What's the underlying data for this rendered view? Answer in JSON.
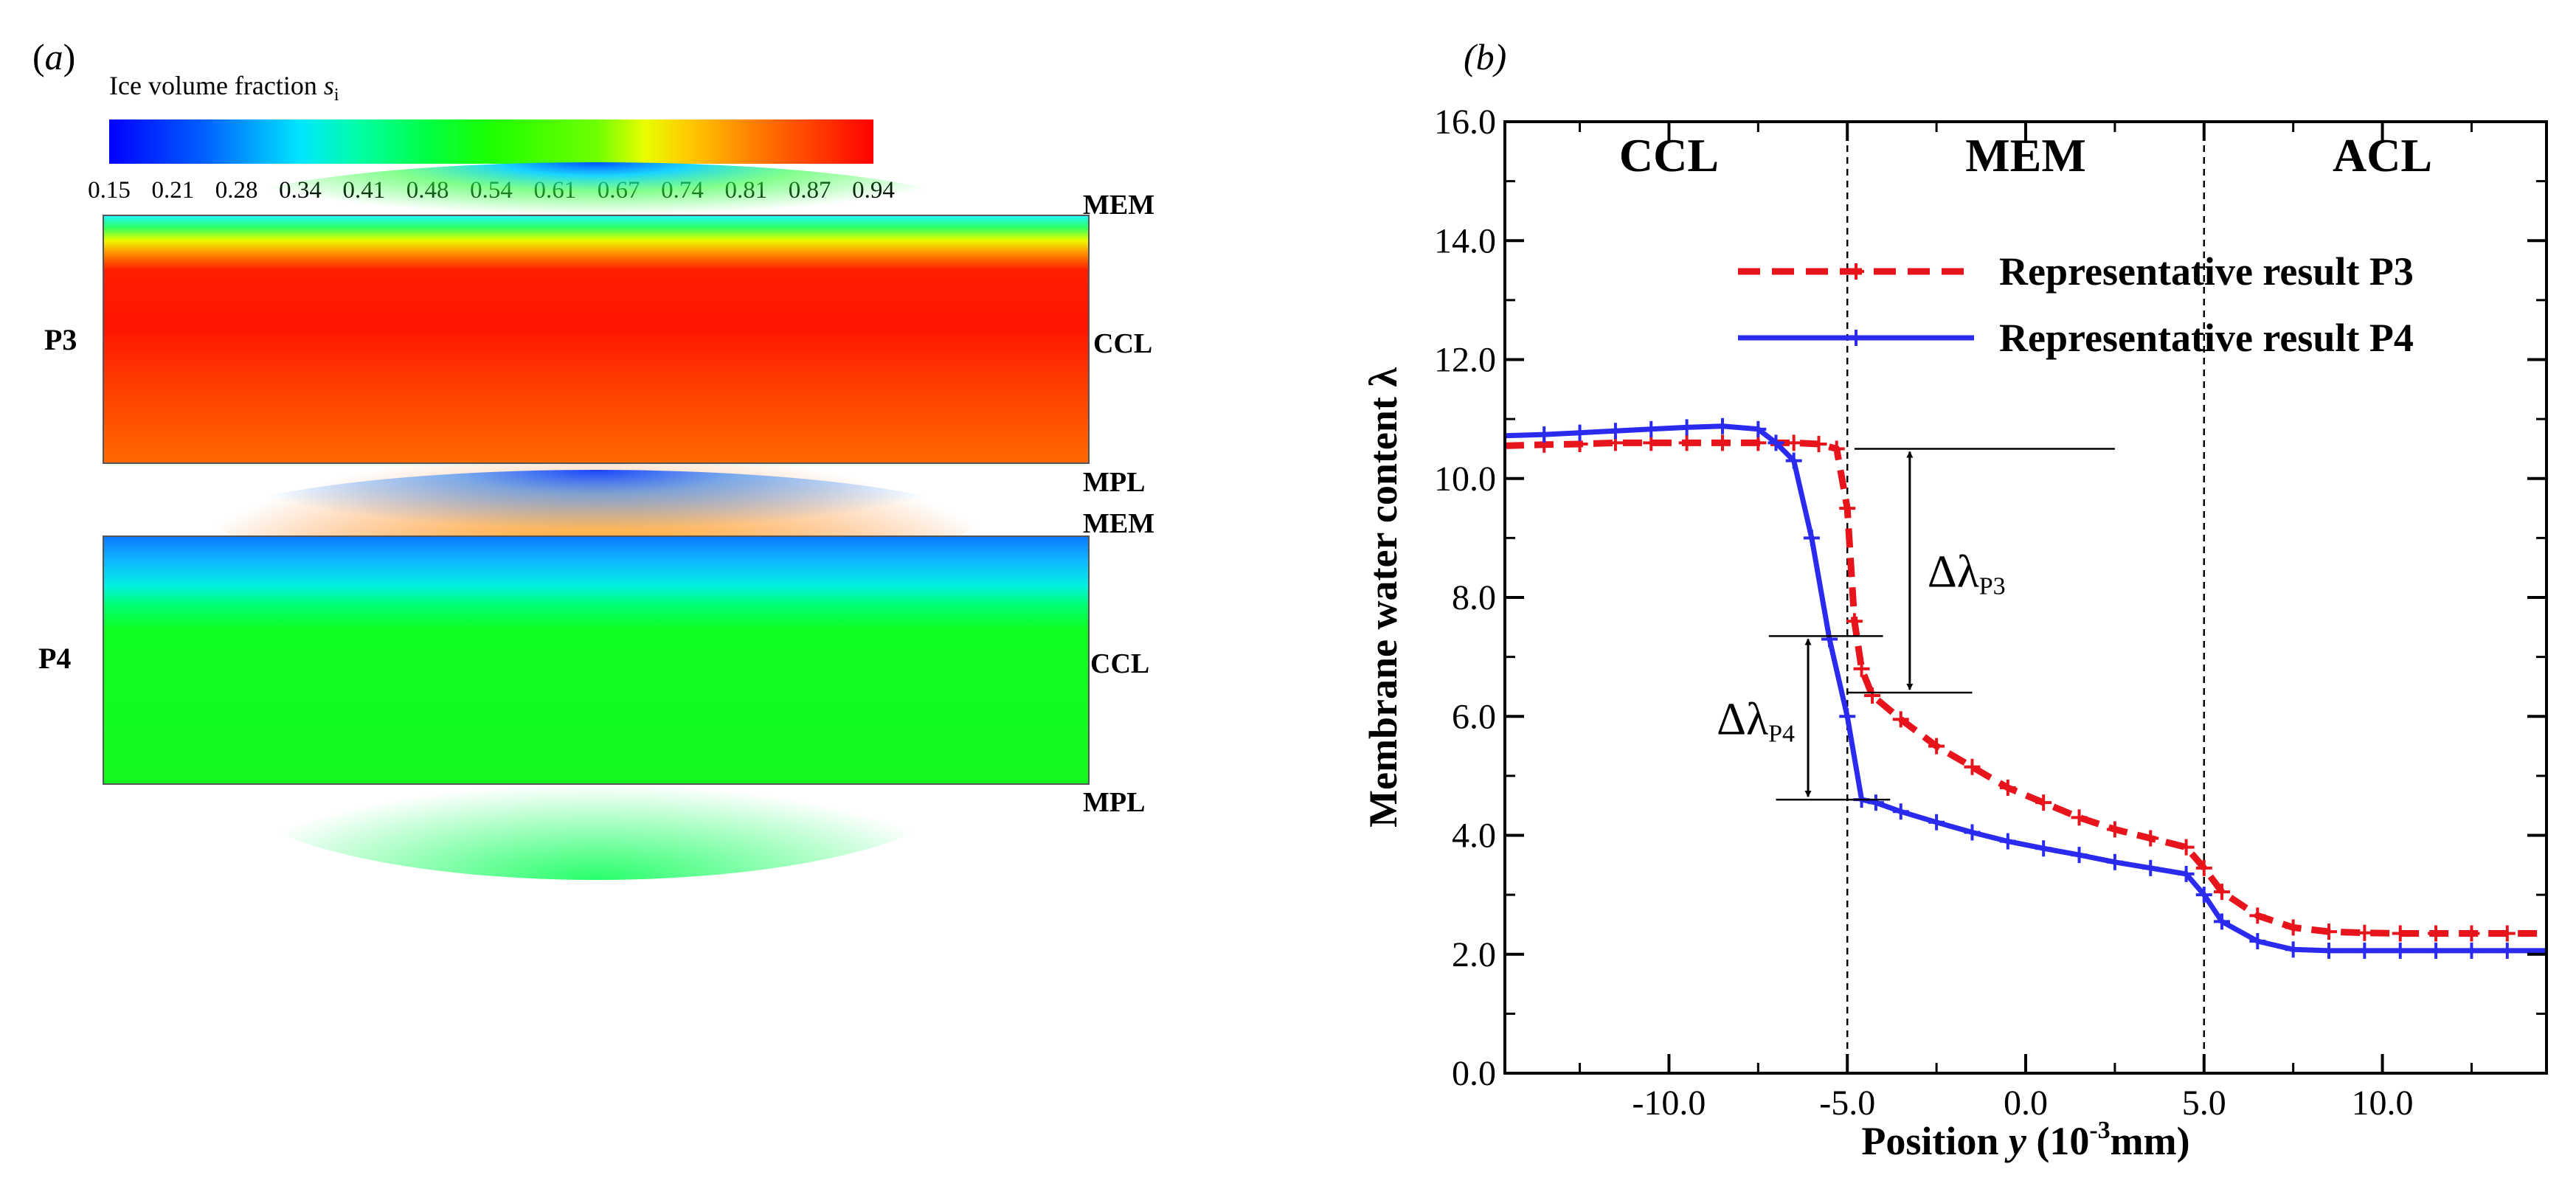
{
  "panel_a": {
    "label_open": "(",
    "label_letter": "a",
    "label_close": ")",
    "colorbar": {
      "title": "Ice volume fraction ",
      "title_var": "s",
      "title_sub": "i",
      "ticks": [
        "0.15",
        "0.21",
        "0.28",
        "0.34",
        "0.41",
        "0.48",
        "0.54",
        "0.61",
        "0.67",
        "0.74",
        "0.81",
        "0.87",
        "0.94"
      ]
    },
    "contours": [
      {
        "name": "P3",
        "top_label": "MEM",
        "mid_label": "CCL",
        "bottom_label": "MPL"
      },
      {
        "name": "P4",
        "top_label": "MEM",
        "mid_label": "CCL",
        "bottom_label": "MPL"
      }
    ]
  },
  "chart_data": {
    "type": "line",
    "panel_label": "(b)",
    "xlabel_prefix": "Position ",
    "xlabel_var": "y",
    "xlabel_units_pre": " (10",
    "xlabel_exp": "-3",
    "xlabel_units_post": "mm)",
    "ylabel": "Membrane water content λ",
    "xlim": [
      -14.6,
      14.6
    ],
    "ylim": [
      0,
      16
    ],
    "x_ticks": [
      -10,
      -5,
      0,
      5,
      10
    ],
    "x_tick_labels": [
      "-10.0",
      "-5.0",
      "0.0",
      "5.0",
      "10.0"
    ],
    "y_ticks": [
      0,
      2,
      4,
      6,
      8,
      10,
      12,
      14,
      16
    ],
    "y_tick_labels": [
      "0.0",
      "2.0",
      "4.0",
      "6.0",
      "8.0",
      "10.0",
      "12.0",
      "14.0",
      "16.0"
    ],
    "region_boundaries": [
      -5,
      5
    ],
    "regions": [
      {
        "label": "CCL",
        "x": -10
      },
      {
        "label": "MEM",
        "x": 0
      },
      {
        "label": "ACL",
        "x": 10
      }
    ],
    "series": [
      {
        "name": "Representative result P3",
        "color": "#e8141b",
        "style": "dashed",
        "x": [
          -14.6,
          -13.5,
          -12.5,
          -11.5,
          -10.5,
          -9.5,
          -8.5,
          -7.5,
          -6.5,
          -5.8,
          -5.3,
          -5.0,
          -4.8,
          -4.6,
          -4.3,
          -3.5,
          -2.5,
          -1.5,
          -0.5,
          0.5,
          1.5,
          2.5,
          3.5,
          4.5,
          5.0,
          5.5,
          6.5,
          7.5,
          8.5,
          9.5,
          10.5,
          11.5,
          12.5,
          13.5,
          14.6
        ],
        "y": [
          10.55,
          10.57,
          10.58,
          10.6,
          10.6,
          10.6,
          10.6,
          10.6,
          10.6,
          10.58,
          10.5,
          9.5,
          7.6,
          6.8,
          6.35,
          5.95,
          5.5,
          5.15,
          4.8,
          4.55,
          4.3,
          4.1,
          3.95,
          3.8,
          3.45,
          3.05,
          2.65,
          2.45,
          2.38,
          2.36,
          2.35,
          2.35,
          2.35,
          2.35,
          2.35
        ]
      },
      {
        "name": "Representative result P4",
        "color": "#2b2bef",
        "style": "solid",
        "x": [
          -14.6,
          -13.5,
          -12.5,
          -11.5,
          -10.5,
          -9.5,
          -8.5,
          -7.5,
          -7.0,
          -6.5,
          -6.0,
          -5.5,
          -5.0,
          -4.6,
          -4.2,
          -3.5,
          -2.5,
          -1.5,
          -0.5,
          0.5,
          1.5,
          2.5,
          3.5,
          4.5,
          5.0,
          5.5,
          6.5,
          7.5,
          8.5,
          9.5,
          10.5,
          11.5,
          12.5,
          13.5,
          14.6
        ],
        "y": [
          10.72,
          10.74,
          10.77,
          10.8,
          10.83,
          10.86,
          10.88,
          10.83,
          10.6,
          10.3,
          9.0,
          7.3,
          6.0,
          4.6,
          4.55,
          4.4,
          4.22,
          4.05,
          3.9,
          3.78,
          3.67,
          3.55,
          3.45,
          3.35,
          3.0,
          2.55,
          2.22,
          2.08,
          2.06,
          2.06,
          2.06,
          2.06,
          2.06,
          2.06,
          2.06
        ]
      }
    ],
    "annotations": [
      {
        "label": "Δλ",
        "sub": "P3",
        "x": -3.25,
        "y_top": 10.5,
        "y_bottom": 6.4
      },
      {
        "label": "Δλ",
        "sub": "P4",
        "x": -6.1,
        "y_top": 7.35,
        "y_bottom": 4.6
      }
    ]
  }
}
